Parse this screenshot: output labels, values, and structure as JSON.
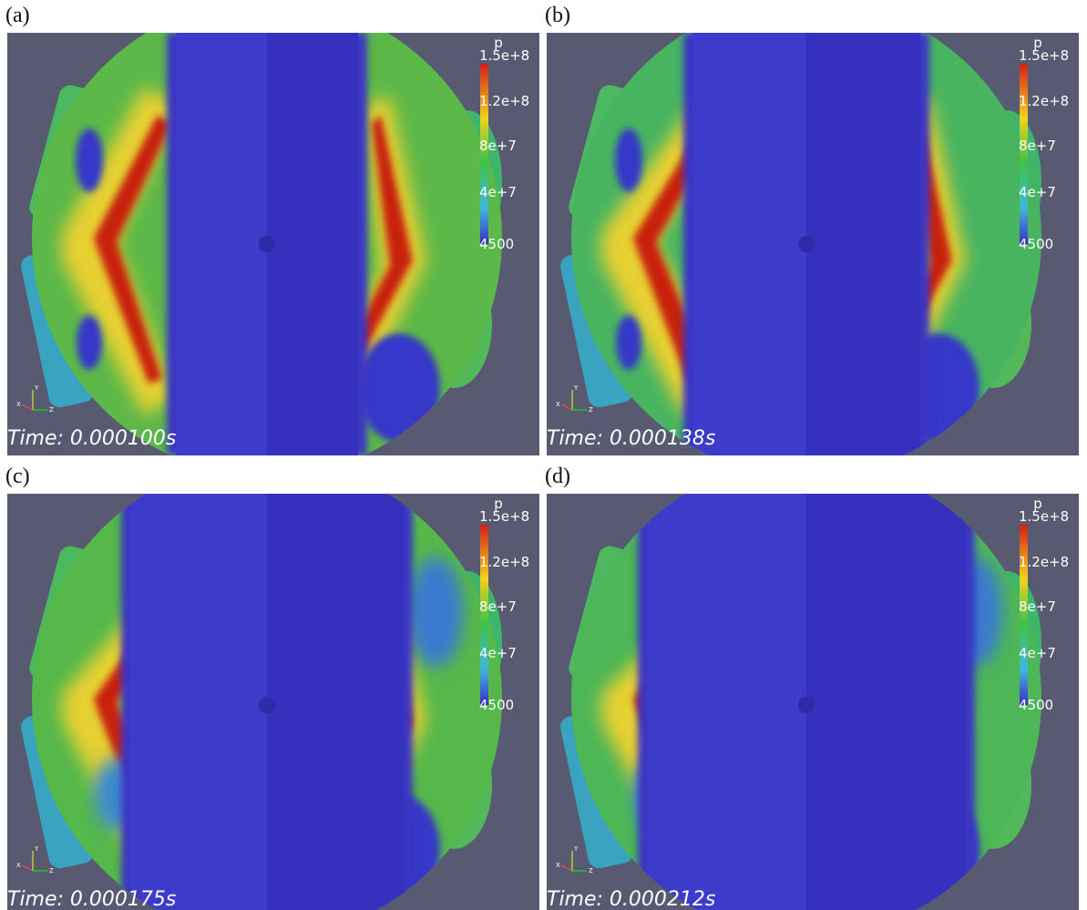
{
  "panels": [
    {
      "label": "(a)",
      "colorbar": {
        "title": "p",
        "ticks": [
          "1.5e+8",
          "1.2e+8",
          "8e+7",
          "4e+7",
          "4500"
        ]
      },
      "time": "Time: 0.000100s"
    },
    {
      "label": "(b)",
      "colorbar": {
        "title": "p",
        "ticks": [
          "1.5e+8",
          "1.2e+8",
          "8e+7",
          "4e+7",
          "4500"
        ]
      },
      "time": "Time: 0.000138s"
    },
    {
      "label": "(c)",
      "colorbar": {
        "title": "p",
        "ticks": [
          "1.5e+8",
          "1.2e+8",
          "8e+7",
          "4e+7",
          "4500"
        ]
      },
      "time": "Time: 0.000175s"
    },
    {
      "label": "(d)",
      "colorbar": {
        "title": "p",
        "ticks": [
          "1.5e+8",
          "1.2e+8",
          "8e+7",
          "4e+7",
          "4500"
        ]
      },
      "time": "Time: 0.000212s"
    }
  ],
  "axis_labels": [
    "Y",
    "X",
    "Z"
  ]
}
